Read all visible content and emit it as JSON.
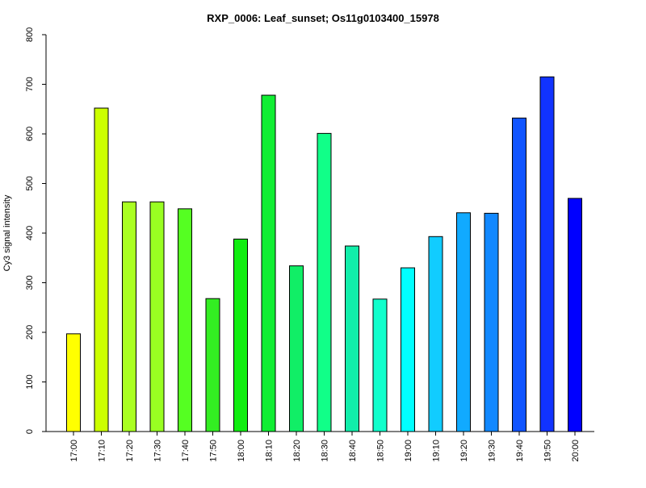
{
  "chart_data": {
    "type": "bar",
    "title": "RXP_0006: Leaf_sunset; Os11g0103400_15978",
    "xlabel": "",
    "ylabel": "Cy3 signal intensity",
    "ylim": [
      0,
      800
    ],
    "yticks": [
      0,
      100,
      200,
      300,
      400,
      500,
      600,
      700,
      800
    ],
    "categories": [
      "17:00",
      "17:10",
      "17:20",
      "17:30",
      "17:40",
      "17:50",
      "18:00",
      "18:10",
      "18:20",
      "18:30",
      "18:40",
      "18:50",
      "19:00",
      "19:10",
      "19:20",
      "19:30",
      "19:40",
      "19:50",
      "20:00"
    ],
    "values": [
      197,
      652,
      463,
      463,
      449,
      268,
      388,
      678,
      334,
      601,
      374,
      267,
      330,
      393,
      441,
      440,
      632,
      715,
      470
    ],
    "colors": [
      "#FFFF00",
      "#CCFF00",
      "#AAFF22",
      "#99FF22",
      "#55FF22",
      "#33EE22",
      "#11EE11",
      "#11EE33",
      "#11EE66",
      "#11FF88",
      "#11EEAA",
      "#11FFCC",
      "#00FFFF",
      "#11CCFF",
      "#11AAFF",
      "#1188FF",
      "#1155FF",
      "#1133FF",
      "#0000FF"
    ],
    "grid": false,
    "legend": "none"
  }
}
